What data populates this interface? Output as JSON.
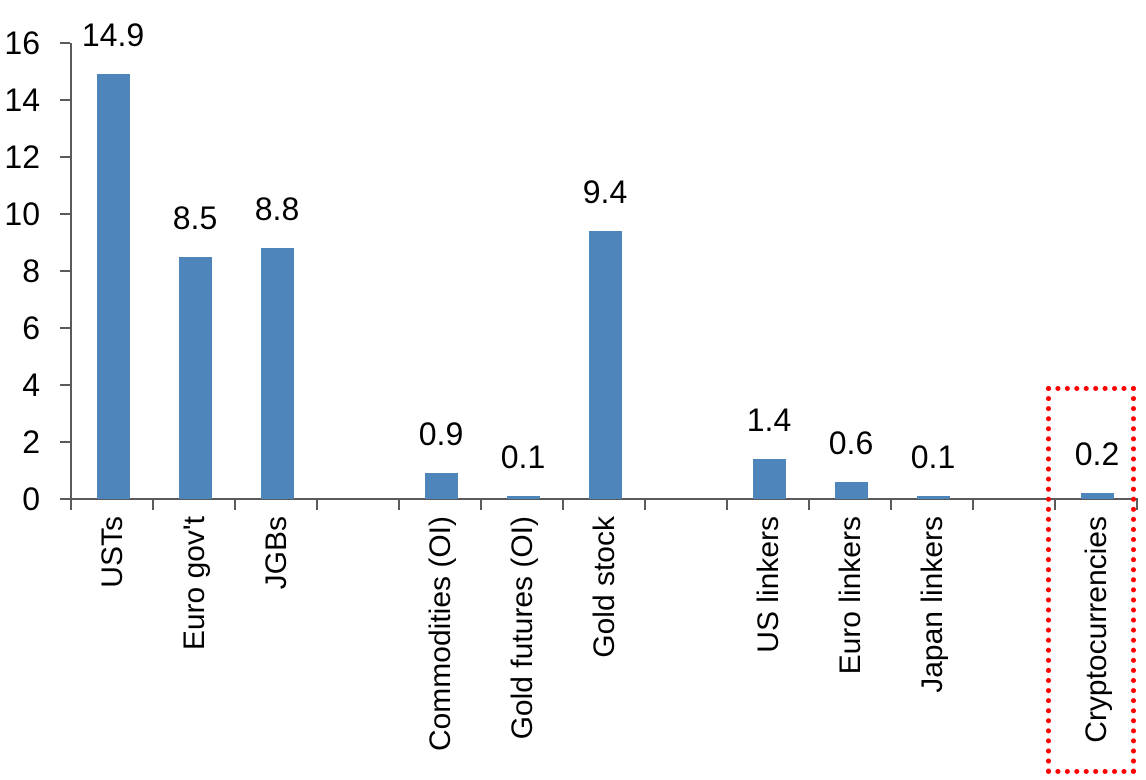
{
  "chart_data": {
    "type": "bar",
    "title": "",
    "xlabel": "",
    "ylabel": "",
    "categories": [
      "USTs",
      "Euro gov't",
      "JGBs",
      "",
      "Commodities (OI)",
      "Gold futures (OI)",
      "Gold stock",
      "",
      "US linkers",
      "Euro linkers",
      "Japan linkers",
      "",
      "Cryptocurrencies"
    ],
    "values": [
      14.9,
      8.5,
      8.8,
      null,
      0.9,
      0.1,
      9.4,
      null,
      1.4,
      0.6,
      0.1,
      null,
      0.2
    ],
    "data_labels": [
      "14.9",
      "8.5",
      "8.8",
      "",
      "0.9",
      "0.1",
      "9.4",
      "",
      "1.4",
      "0.6",
      "0.1",
      "",
      "0.2"
    ],
    "y_axis": {
      "min": 0,
      "max": 16,
      "step": 2,
      "ticks": [
        "0",
        "2",
        "4",
        "6",
        "8",
        "10",
        "12",
        "14",
        "16"
      ]
    },
    "grid": false,
    "legend": false,
    "bar_color": "#4E86BC",
    "axis_color": "#5A5A5A",
    "text_color": "#000000",
    "highlight": {
      "category": "Cryptocurrencies",
      "style": "dotted-box",
      "color": "#FF0000"
    }
  }
}
